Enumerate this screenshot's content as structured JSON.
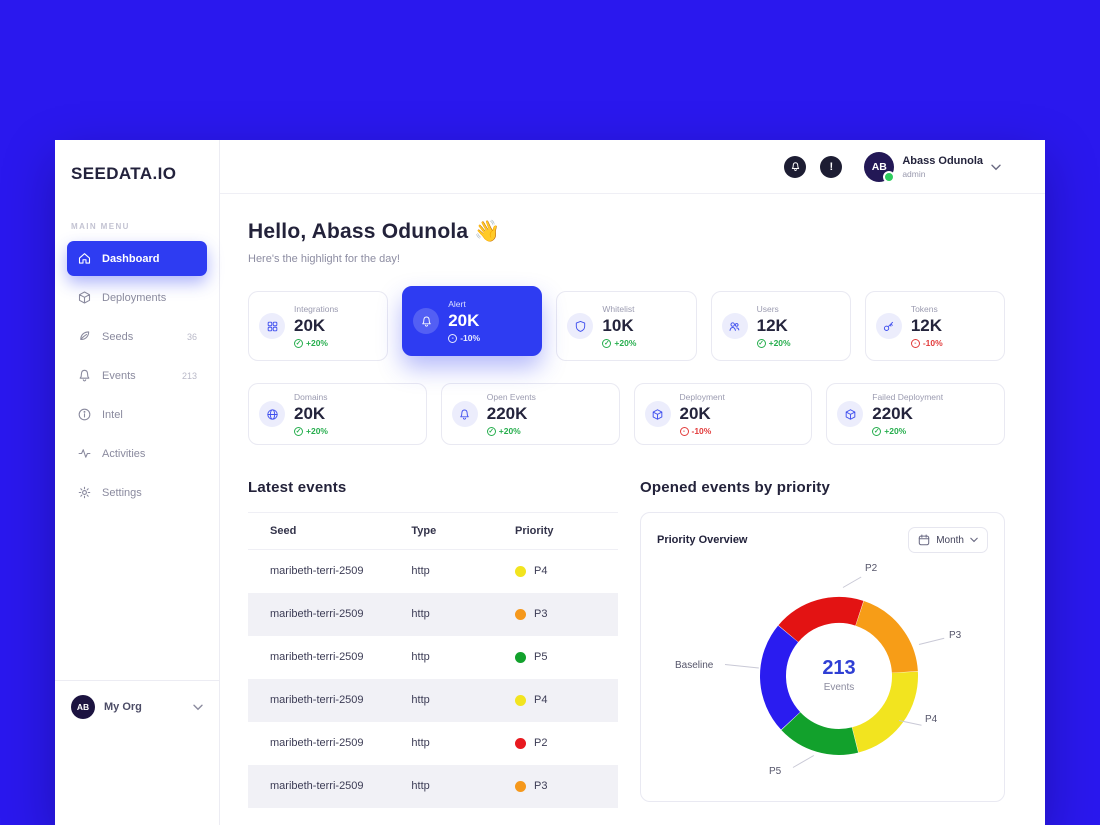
{
  "app": {
    "logo": "SEEDATA.IO"
  },
  "topbar": {
    "user": {
      "initials": "AB",
      "name": "Abass Odunola",
      "role": "admin"
    }
  },
  "sidebar": {
    "section_label": "MAIN MENU",
    "items": [
      {
        "label": "Dashboard",
        "icon": "home-icon",
        "key": "home",
        "active": true
      },
      {
        "label": "Deployments",
        "icon": "cube-icon",
        "key": "box"
      },
      {
        "label": "Seeds",
        "icon": "seed-icon",
        "key": "seed",
        "badge": "36"
      },
      {
        "label": "Events",
        "icon": "bell-icon",
        "key": "bell",
        "badge": "213"
      },
      {
        "label": "Intel",
        "icon": "info-icon",
        "key": "info"
      },
      {
        "label": "Activities",
        "icon": "activity-icon",
        "key": "activity"
      },
      {
        "label": "Settings",
        "icon": "gear-icon",
        "key": "gear"
      }
    ],
    "org": {
      "initials": "AB",
      "label": "My Org"
    }
  },
  "greeting": {
    "title": "Hello, Abass Odunola",
    "wave": "👋",
    "subtitle": "Here's the highlight for the day!"
  },
  "stats": [
    {
      "label": "Integrations",
      "value": "20K",
      "delta": "+20%",
      "trend": "up",
      "icon": "integrations-icon",
      "key": "grid"
    },
    {
      "label": "Alert",
      "value": "20K",
      "delta": "-10%",
      "trend": "down",
      "icon": "alert-bell-icon",
      "key": "bell",
      "active": true
    },
    {
      "label": "Whitelist",
      "value": "10K",
      "delta": "+20%",
      "trend": "up",
      "icon": "whitelist-shield-icon",
      "key": "shield"
    },
    {
      "label": "Users",
      "value": "12K",
      "delta": "+20%",
      "trend": "up",
      "icon": "users-icon",
      "key": "users"
    },
    {
      "label": "Tokens",
      "value": "12K",
      "delta": "-10%",
      "trend": "down",
      "icon": "tokens-key-icon",
      "key": "key"
    },
    {
      "label": "Domains",
      "value": "20K",
      "delta": "+20%",
      "trend": "up",
      "icon": "domains-globe-icon",
      "key": "globe"
    },
    {
      "label": "Open Events",
      "value": "220K",
      "delta": "+20%",
      "trend": "up",
      "icon": "open-events-icon",
      "key": "bell"
    },
    {
      "label": "Deployment",
      "value": "20K",
      "delta": "-10%",
      "trend": "down",
      "icon": "deployment-cube-icon",
      "key": "box"
    },
    {
      "label": "Failed Deployment",
      "value": "220K",
      "delta": "+20%",
      "trend": "up",
      "icon": "failed-deployment-icon",
      "key": "box"
    }
  ],
  "latest_events": {
    "title": "Latest events",
    "columns": [
      "Seed",
      "Type",
      "Priority"
    ],
    "rows": [
      {
        "seed": "maribeth-terri-2509",
        "type": "http",
        "priority": "P4",
        "color": "#f2e41f"
      },
      {
        "seed": "maribeth-terri-2509",
        "type": "http",
        "priority": "P3",
        "color": "#f5981c"
      },
      {
        "seed": "maribeth-terri-2509",
        "type": "http",
        "priority": "P5",
        "color": "#12a12c"
      },
      {
        "seed": "maribeth-terri-2509",
        "type": "http",
        "priority": "P4",
        "color": "#f2e41f"
      },
      {
        "seed": "maribeth-terri-2509",
        "type": "http",
        "priority": "P2",
        "color": "#e8191f"
      },
      {
        "seed": "maribeth-terri-2509",
        "type": "http",
        "priority": "P3",
        "color": "#f5981c"
      }
    ]
  },
  "priority_panel": {
    "section_title": "Opened events by priority",
    "card_title": "Priority Overview",
    "period": "Month",
    "chart_data": {
      "type": "donut",
      "title": "Priority Overview",
      "center_value": "213",
      "center_label": "Events",
      "start_angle_deg": -50,
      "segments": [
        {
          "label": "P2",
          "value": 19,
          "color": "#e31313"
        },
        {
          "label": "P3",
          "value": 19,
          "color": "#f79d17"
        },
        {
          "label": "P4",
          "value": 22,
          "color": "#f2e41f"
        },
        {
          "label": "P5",
          "value": 17,
          "color": "#12a12c"
        },
        {
          "label": "Baseline",
          "value": 23,
          "color": "#2a1cf0"
        }
      ]
    }
  },
  "colors": {
    "background": "#2a18ee",
    "accent": "#2e3cf2",
    "positive": "#27ae4e",
    "negative": "#e23b3b"
  }
}
